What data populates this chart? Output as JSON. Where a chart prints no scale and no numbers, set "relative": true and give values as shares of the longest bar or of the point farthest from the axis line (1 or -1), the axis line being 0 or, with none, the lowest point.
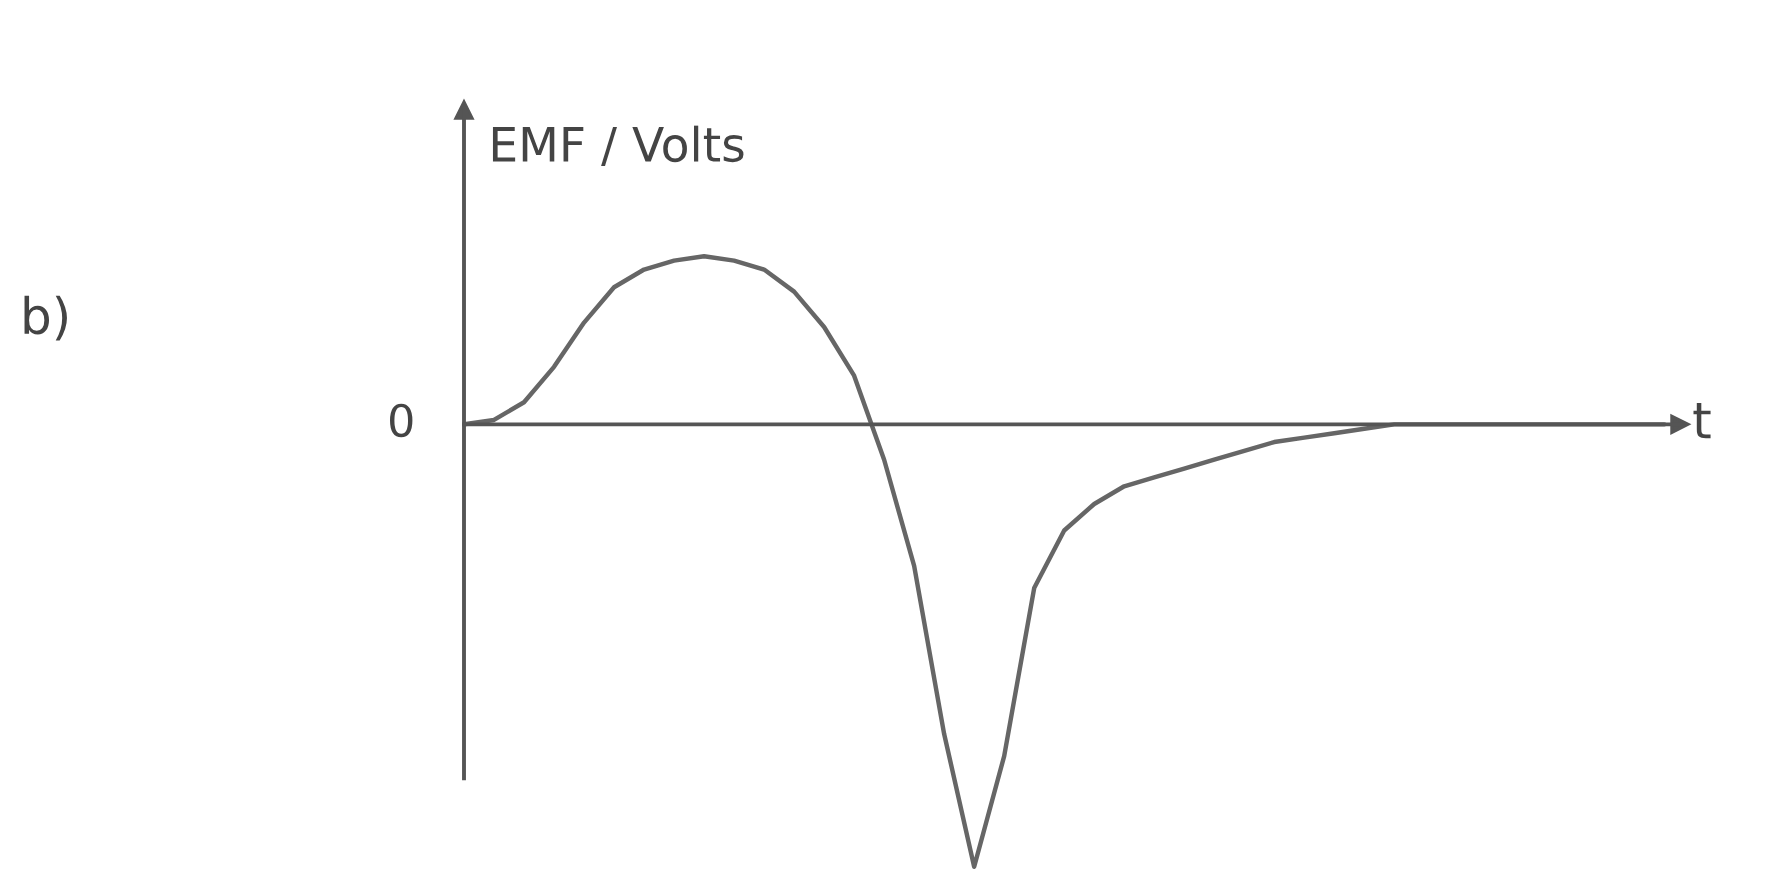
{
  "chart_data": {
    "type": "line",
    "relative": true,
    "ylabel": "EMF / Volts",
    "xlabel": "t",
    "grid": false,
    "legend": false,
    "annotations": [
      "b)",
      "0"
    ],
    "categories": [
      null,
      null,
      null,
      null,
      null,
      null,
      null,
      null,
      null,
      null,
      null,
      null,
      null,
      null,
      null,
      null,
      null,
      null,
      null,
      null,
      null,
      null,
      null,
      null,
      null,
      null,
      null,
      null,
      null,
      null,
      null,
      null,
      null,
      null,
      null,
      null,
      null,
      null,
      null,
      null,
      null
    ],
    "series": [
      {
        "color": "#666666",
        "values": [
          0,
          0.01,
          0.05,
          0.13,
          0.23,
          0.31,
          0.35,
          0.37,
          0.38,
          0.37,
          0.35,
          0.3,
          0.22,
          0.11,
          -0.08,
          -0.32,
          -0.7,
          -1,
          -0.75,
          -0.37,
          -0.24,
          -0.18,
          -0.14,
          -0.12,
          -0.1,
          -0.08,
          -0.06,
          -0.04,
          -0.03,
          -0.02,
          -0.01,
          0,
          0,
          0,
          0,
          0,
          0,
          0,
          0,
          0,
          0
        ]
      }
    ]
  }
}
